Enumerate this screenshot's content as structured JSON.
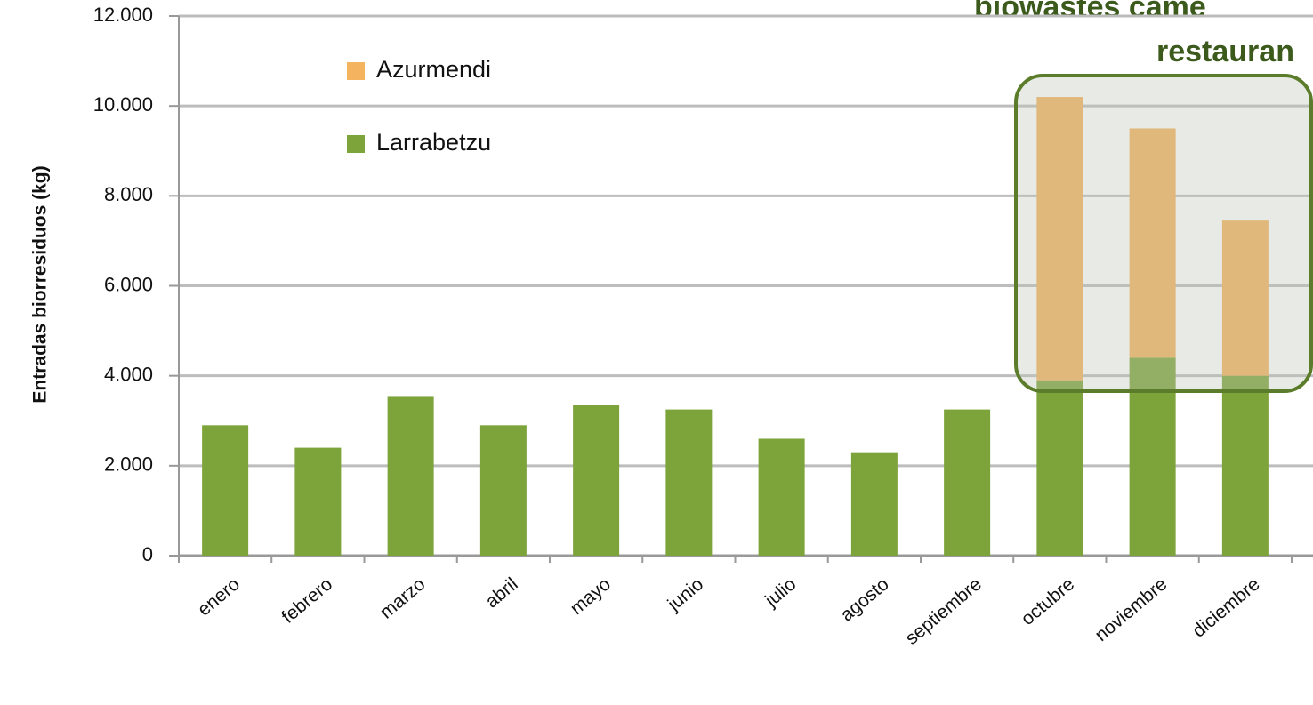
{
  "chart_data": {
    "type": "bar",
    "stacked": true,
    "ylabel": "Entradas biorresiduos (kg)",
    "annotation": [
      "biowastes came",
      "restauran"
    ],
    "categories": [
      "enero",
      "febrero",
      "marzo",
      "abril",
      "mayo",
      "junio",
      "julio",
      "agosto",
      "septiembre",
      "octubre",
      "noviembre",
      "diciembre"
    ],
    "series": [
      {
        "name": "Azurmendi",
        "color": "#f3b35f",
        "values": [
          0,
          0,
          0,
          0,
          0,
          0,
          0,
          0,
          0,
          6300,
          5100,
          3450
        ]
      },
      {
        "name": "Larrabetzu",
        "color": "#7da33b",
        "values": [
          2900,
          2400,
          3550,
          2900,
          3350,
          3250,
          2600,
          2300,
          3250,
          3900,
          4400,
          4000
        ]
      }
    ],
    "ylim": [
      0,
      12000
    ],
    "yticks": [
      0,
      {
        "value": 2000,
        "label": "2.000"
      },
      {
        "value": 4000,
        "label": "4.000"
      },
      {
        "value": 6000,
        "label": "6.000"
      },
      {
        "value": 8000,
        "label": "8.000"
      },
      {
        "value": 10000,
        "label": "10.000"
      },
      {
        "value": 12000,
        "label": "12.000"
      }
    ],
    "grid": true,
    "legend": "upper left"
  }
}
